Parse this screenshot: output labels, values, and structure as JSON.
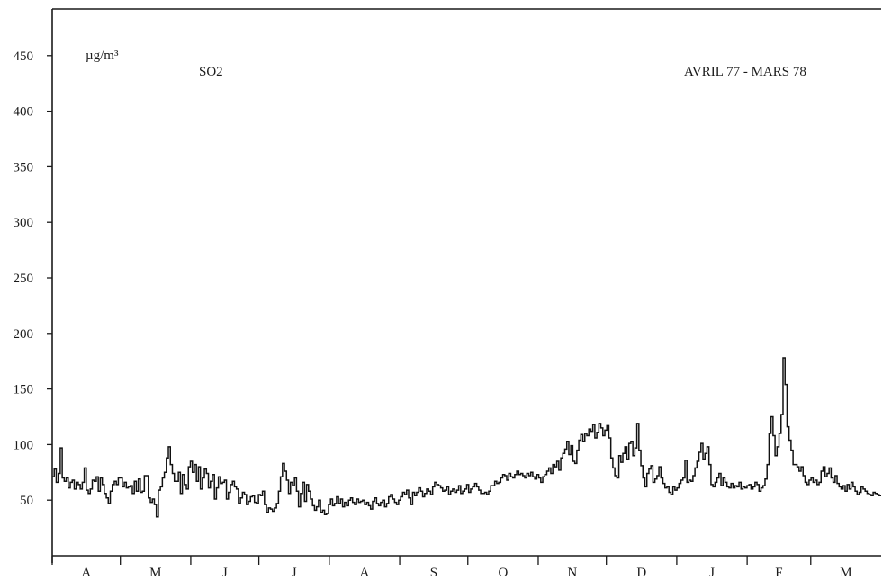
{
  "chart_data": {
    "type": "line",
    "title": "SO2",
    "period_label": "AVRIL 77 - MARS 78",
    "unit_label": "µg/m³",
    "ylim": [
      0,
      450
    ],
    "yticks": [
      50,
      100,
      150,
      200,
      250,
      300,
      350,
      400,
      450
    ],
    "months": [
      "A",
      "M",
      "J",
      "J",
      "A",
      "S",
      "O",
      "N",
      "D",
      "J",
      "F",
      "M"
    ],
    "month_days": [
      30,
      31,
      30,
      31,
      31,
      30,
      31,
      30,
      31,
      31,
      28,
      31
    ],
    "grid": false,
    "series": [
      {
        "values": [
          71,
          78,
          66,
          74,
          97,
          70,
          67,
          70,
          61,
          66,
          68,
          60,
          66,
          64,
          60,
          66,
          79,
          59,
          56,
          60,
          68,
          67,
          71,
          58,
          70,
          64,
          56,
          52,
          47,
          58,
          64,
          67,
          64,
          70,
          70,
          62,
          66,
          61,
          62,
          63,
          56,
          67,
          58,
          69,
          57,
          58,
          72,
          72,
          52,
          48,
          51,
          46,
          35,
          59,
          62,
          70,
          75,
          88,
          98,
          82,
          74,
          67,
          67,
          75,
          56,
          73,
          64,
          60,
          80,
          85,
          75,
          82,
          67,
          80,
          60,
          70,
          78,
          74,
          61,
          67,
          73,
          51,
          61,
          71,
          65,
          66,
          68,
          51,
          57,
          64,
          67,
          62,
          60,
          47,
          52,
          57,
          55,
          46,
          49,
          53,
          54,
          48,
          47,
          55,
          54,
          58,
          46,
          39,
          43,
          42,
          40,
          43,
          47,
          58,
          71,
          83,
          76,
          68,
          56,
          66,
          63,
          70,
          58,
          44,
          56,
          66,
          49,
          64,
          58,
          51,
          45,
          41,
          44,
          50,
          39,
          41,
          37,
          38,
          46,
          51,
          45,
          47,
          53,
          47,
          51,
          44,
          48,
          45,
          50,
          52,
          48,
          46,
          51,
          48,
          49,
          50,
          46,
          48,
          45,
          42,
          49,
          52,
          47,
          45,
          48,
          50,
          44,
          47,
          53,
          55,
          51,
          48,
          46,
          50,
          53,
          57,
          55,
          59,
          52,
          46,
          57,
          54,
          57,
          61,
          58,
          53,
          56,
          60,
          58,
          55,
          62,
          66,
          64,
          63,
          61,
          58,
          59,
          62,
          55,
          58,
          60,
          57,
          59,
          63,
          56,
          58,
          60,
          64,
          57,
          60,
          62,
          65,
          62,
          59,
          56,
          56,
          57,
          55,
          58,
          63,
          63,
          67,
          65,
          66,
          70,
          73,
          72,
          68,
          74,
          71,
          70,
          73,
          76,
          73,
          74,
          72,
          70,
          74,
          72,
          75,
          71,
          69,
          73,
          70,
          66,
          71,
          73,
          76,
          79,
          74,
          82,
          80,
          85,
          77,
          88,
          92,
          96,
          103,
          91,
          99,
          85,
          83,
          95,
          104,
          109,
          103,
          110,
          108,
          114,
          112,
          118,
          106,
          111,
          119,
          115,
          108,
          113,
          117,
          106,
          88,
          79,
          72,
          70,
          90,
          84,
          92,
          98,
          87,
          101,
          103,
          90,
          97,
          119,
          95,
          81,
          70,
          62,
          74,
          78,
          81,
          66,
          69,
          72,
          80,
          70,
          65,
          61,
          62,
          57,
          55,
          62,
          59,
          61,
          65,
          68,
          70,
          86,
          66,
          68,
          67,
          72,
          79,
          85,
          93,
          101,
          87,
          92,
          98,
          82,
          64,
          62,
          66,
          70,
          74,
          63,
          70,
          66,
          62,
          61,
          65,
          61,
          63,
          62,
          66,
          60,
          62,
          61,
          63,
          64,
          60,
          62,
          66,
          64,
          58,
          61,
          63,
          69,
          82,
          110,
          125,
          108,
          90,
          98,
          110,
          127,
          178,
          154,
          116,
          104,
          95,
          82,
          82,
          80,
          76,
          80,
          72,
          66,
          64,
          68,
          70,
          66,
          68,
          64,
          66,
          76,
          80,
          71,
          74,
          79,
          70,
          66,
          72,
          65,
          62,
          60,
          63,
          58,
          64,
          60,
          66,
          62,
          58,
          55,
          57,
          62,
          60,
          58,
          56,
          55,
          54,
          57,
          56,
          55,
          54
        ]
      }
    ]
  }
}
